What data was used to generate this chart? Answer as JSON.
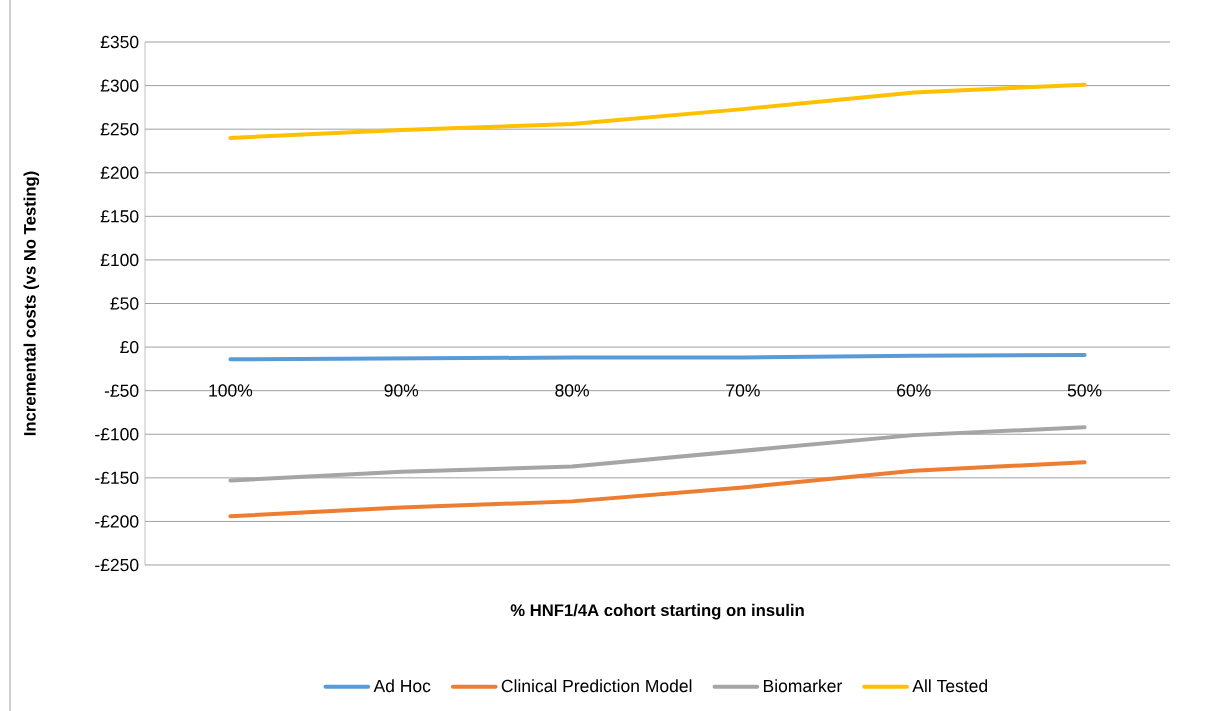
{
  "chart_data": {
    "type": "line",
    "xlabel": "% HNF1/4A cohort starting on insulin",
    "ylabel": "Incremental costs (vs No Testing)",
    "categories": [
      "100%",
      "90%",
      "80%",
      "70%",
      "60%",
      "50%"
    ],
    "series": [
      {
        "name": "Ad Hoc",
        "color": "#5b9bd5",
        "values": [
          -14,
          -13,
          -12,
          -12,
          -10,
          -9
        ]
      },
      {
        "name": "Clinical Prediction Model",
        "color": "#ed7d31",
        "values": [
          -194,
          -184,
          -177,
          -161,
          -142,
          -132
        ]
      },
      {
        "name": "Biomarker",
        "color": "#a5a5a5",
        "values": [
          -153,
          -143,
          -137,
          -119,
          -101,
          -92
        ]
      },
      {
        "name": "All Tested",
        "color": "#ffc000",
        "values": [
          240,
          249,
          256,
          273,
          292,
          301
        ]
      }
    ],
    "ylim": [
      -250,
      350
    ],
    "yticks": [
      {
        "value": -250,
        "label": "-£250"
      },
      {
        "value": -200,
        "label": "-£200"
      },
      {
        "value": -150,
        "label": "-£150"
      },
      {
        "value": -100,
        "label": "-£100"
      },
      {
        "value": -50,
        "label": "-£50"
      },
      {
        "value": 0,
        "label": "£0"
      },
      {
        "value": 50,
        "label": "£50"
      },
      {
        "value": 100,
        "label": "£100"
      },
      {
        "value": 150,
        "label": "£150"
      },
      {
        "value": 200,
        "label": "£200"
      },
      {
        "value": 250,
        "label": "£250"
      },
      {
        "value": 300,
        "label": "£300"
      },
      {
        "value": 350,
        "label": "£350"
      }
    ],
    "grid": "y",
    "legend": "bottom",
    "marker": "none",
    "line_style": "solid"
  }
}
